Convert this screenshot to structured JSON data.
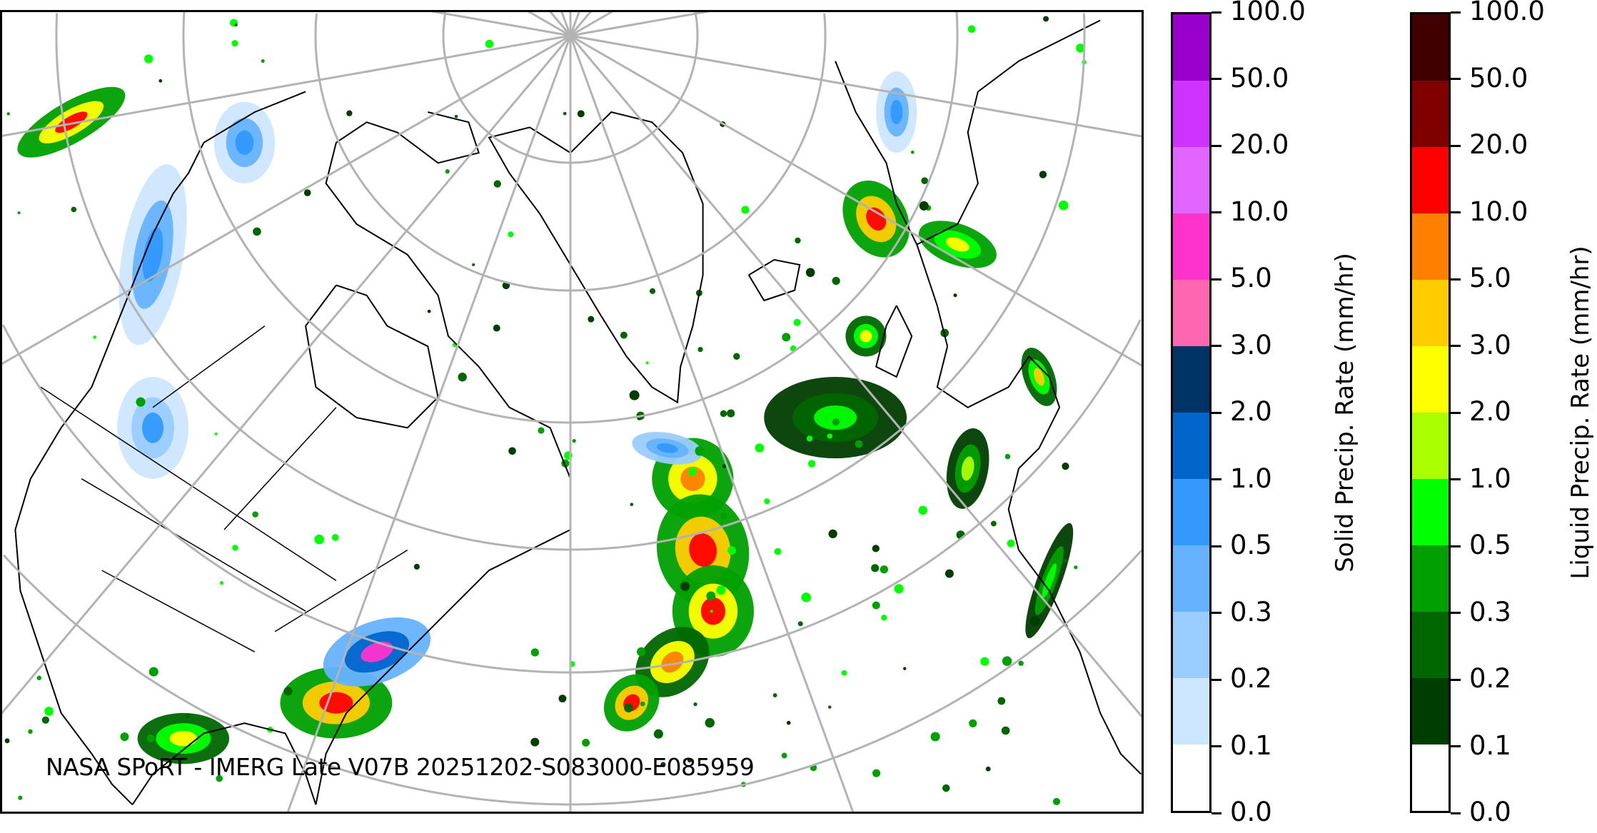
{
  "credit": "NASA SPoRT - IMERG Late V07B 20251202-S083000-E085959",
  "solid_colorbar": {
    "label": "Solid Precip. Rate (mm/hr)",
    "ticks": [
      "0.0",
      "0.1",
      "0.2",
      "0.3",
      "0.5",
      "1.0",
      "2.0",
      "3.0",
      "5.0",
      "10.0",
      "20.0",
      "50.0",
      "100.0"
    ],
    "colors": [
      "#ffffff",
      "#cce6ff",
      "#99ccff",
      "#66b2ff",
      "#3399ff",
      "#0066cc",
      "#003366",
      "#ff66b2",
      "#ff33cc",
      "#e066ff",
      "#cc33ff",
      "#9900cc"
    ]
  },
  "liquid_colorbar": {
    "label": "Liquid Precip. Rate (mm/hr)",
    "ticks": [
      "0.0",
      "0.1",
      "0.2",
      "0.3",
      "0.5",
      "1.0",
      "2.0",
      "3.0",
      "5.0",
      "10.0",
      "20.0",
      "50.0",
      "100.0"
    ],
    "colors": [
      "#ffffff",
      "#003d00",
      "#006600",
      "#00a000",
      "#00ff00",
      "#aaff00",
      "#ffff00",
      "#ffcc00",
      "#ff8000",
      "#ff0000",
      "#800000",
      "#400000"
    ]
  },
  "map": {
    "projection": "north-polar-stereographic",
    "region": "North America, North Atlantic, Greenland, Europe",
    "graticule_color": "#b3b3b3",
    "coastline_color": "#000000"
  }
}
